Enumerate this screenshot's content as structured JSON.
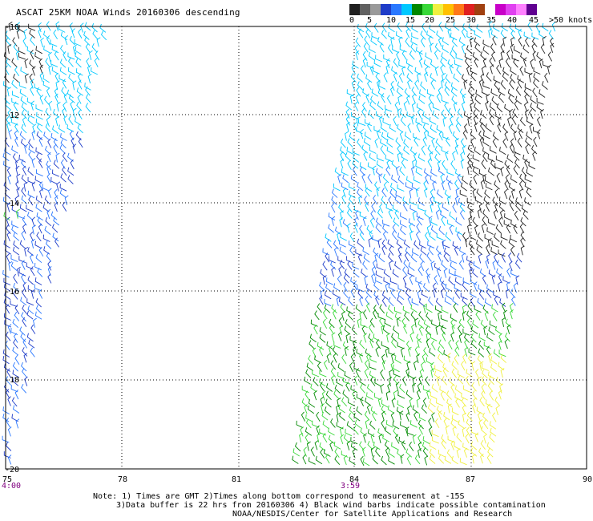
{
  "title": "ASCAT 25KM NOAA Winds 20160306 descending",
  "legend": {
    "colors": [
      "#202020",
      "#606060",
      "#9a9a9a",
      "#1e3cc8",
      "#2a78ff",
      "#00c8ff",
      "#008800",
      "#38d838",
      "#f0f040",
      "#ffc000",
      "#ff7818",
      "#e02020",
      "#a04010",
      "#ffffff",
      "#c800c8",
      "#e040f0",
      "#ff80ff",
      "#600090"
    ],
    "labels": [
      "0",
      "5",
      "10",
      "15",
      "20",
      "25",
      "30",
      "35",
      "40",
      "45",
      ">50 knots"
    ]
  },
  "axes": {
    "lat_labels": [
      "-10",
      "-12",
      "-14",
      "-16",
      "-18",
      "-20"
    ],
    "lon_labels": [
      "75",
      "78",
      "81",
      "84",
      "87",
      "90"
    ],
    "time_labels": [
      "4:00",
      "3:59"
    ]
  },
  "notes": [
    "Note: 1) Times are GMT 2)Times along bottom correspond to measurement at -15S",
    "3)Data buffer is 22 hrs from 20160306 4) Black wind barbs indicate possible contamination",
    "NOAA/NESDIS/Center for Satellite Applications and Research"
  ]
}
